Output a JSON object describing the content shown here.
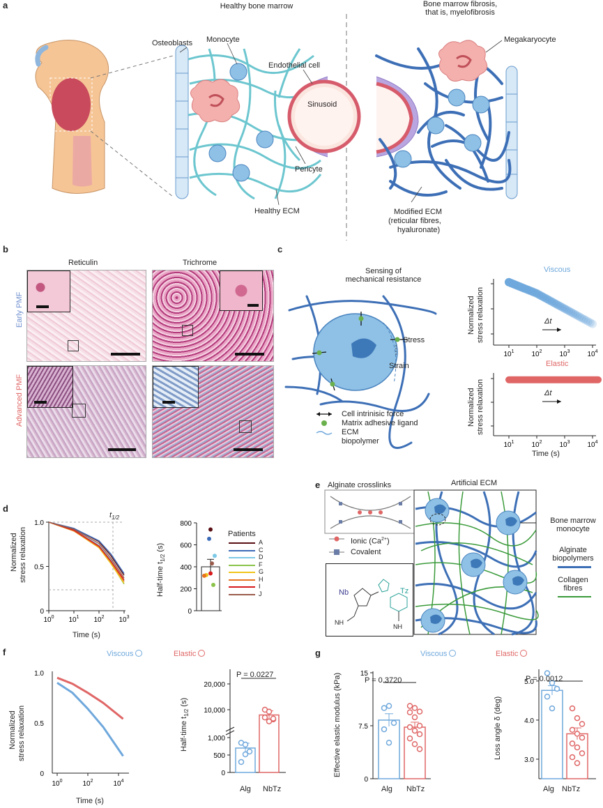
{
  "colors": {
    "viscous": "#6fa8dc",
    "elastic": "#e06666",
    "ecm_healthy": "#6cc6cf",
    "ecm_fibrotic": "#3d6fb6",
    "cell_blue": "#8fc1e6",
    "megakaryocyte": "#f2a9a9",
    "collagen": "#3a9a3a"
  },
  "panel_a": {
    "label": "a",
    "title_left": "Healthy bone marrow",
    "title_right_1": "Bone marrow fibrosis,",
    "title_right_2": "that is, myelofibrosis",
    "osteoblasts": "Osteoblasts",
    "monocyte": "Monocyte",
    "endothelial": "Endothelial cell",
    "sinusoid": "Sinusoid",
    "pericyte": "Pericyte",
    "healthy_ecm": "Healthy ECM",
    "megakaryocyte": "Megakaryocyte",
    "modified_1": "Modified ECM",
    "modified_2": "(reticular fibres,",
    "modified_3": "hyaluronate)"
  },
  "panel_b": {
    "label": "b",
    "col1": "Reticulin",
    "col2": "Trichrome",
    "row1": "Early PMF",
    "row2": "Advanced PMF"
  },
  "panel_c": {
    "label": "c",
    "sensing_1": "Sensing of",
    "sensing_2": "mechanical resistance",
    "stress": "Stress",
    "strain": "Strain",
    "legend_force": "Cell intrinisic force",
    "legend_ligand": "Matrix adhesive ligand",
    "legend_ecm_1": "ECM",
    "legend_ecm_2": "biopolymer",
    "viscous": "Viscous",
    "elastic": "Elastic",
    "ylabel_1": "Normalized",
    "ylabel_2": "stress relaxation",
    "delta_t": "Δt",
    "xlabel": "Time (s)",
    "xticks": [
      "10",
      "10",
      "10",
      "10"
    ],
    "xtick_exp": [
      "1",
      "2",
      "3",
      "4"
    ]
  },
  "panel_d": {
    "label": "d",
    "t_half": "t",
    "t_half_sub": "1/2",
    "ylabel_1": "Normalized",
    "ylabel_2": "stress relaxation",
    "xlabel": "Time (s)",
    "yticks": [
      "1.0",
      "0.5",
      "0"
    ],
    "xticks": [
      "10",
      "10",
      "10",
      "10"
    ],
    "xtick_exp": [
      "0",
      "1",
      "2",
      "3"
    ],
    "bar_ylabel": "Half-time t",
    "bar_ylabel_sub": "1/2",
    "bar_ylabel_unit": " (s)",
    "bar_yticks": [
      "800",
      "600",
      "400",
      "200",
      "0"
    ],
    "legend_title": "Patients",
    "patients": [
      {
        "id": "A",
        "color": "#5a0f14"
      },
      {
        "id": "C",
        "color": "#3b6ab7"
      },
      {
        "id": "D",
        "color": "#7cc8e6"
      },
      {
        "id": "F",
        "color": "#8bc34a"
      },
      {
        "id": "G",
        "color": "#f0c419"
      },
      {
        "id": "H",
        "color": "#e8731f"
      },
      {
        "id": "I",
        "color": "#d7191c"
      },
      {
        "id": "J",
        "color": "#9a5b4b"
      }
    ]
  },
  "panel_e": {
    "label": "e",
    "crosslinks": "Alginate crosslinks",
    "artificial": "Artificial ECM",
    "ionic": "Ionic (Ca",
    "ionic_sup": "2+",
    "ionic_end": ")",
    "covalent": "Covalent",
    "nb": "Nb",
    "tz": "Tz",
    "nh_1": "NH",
    "nh_2": "NH",
    "bm_1": "Bone marrow",
    "bm_2": "monocyte",
    "alg_1": "Alginate",
    "alg_2": "biopolymers",
    "col_1": "Collagen",
    "col_2": "fibres"
  },
  "panel_f": {
    "label": "f",
    "viscous": "Viscous",
    "elastic": "Elastic",
    "ylabel_1": "Normalized",
    "ylabel_2": "stress relaxation",
    "xlabel": "Time (s)",
    "yticks": [
      "1.0",
      "0.5",
      "0"
    ],
    "xticks": [
      "10",
      "10",
      "10"
    ],
    "xtick_exp": [
      "0",
      "2",
      "4"
    ],
    "p_value": "P = 0.0227",
    "bar_ylabel": "Half-time t",
    "bar_ylabel_sub": "1/2",
    "bar_ylabel_unit": " (s)",
    "bar_yticks_top": [
      "20,000",
      "10,000"
    ],
    "bar_yticks_bottom": [
      "1,000",
      "500",
      "0"
    ],
    "cat_1": "Alg",
    "cat_2": "NbTz"
  },
  "panel_g": {
    "label": "g",
    "viscous": "Viscous",
    "elastic": "Elastic",
    "p_left": "P = 0.3720",
    "p_right": "P = 0.0012",
    "ylabel_left": "Effective elastic modulus (kPa)",
    "ylabel_right": "Loss angle δ (deg)",
    "yticks_left": [
      "15",
      "7.5",
      "0"
    ],
    "yticks_right": [
      "5.0",
      "4.0",
      "3.0"
    ],
    "cat_1": "Alg",
    "cat_2": "NbTz"
  },
  "chart_data": [
    {
      "type": "line",
      "panel": "c-viscous",
      "series": [
        {
          "name": "Viscous",
          "x": [
            10,
            100,
            1000,
            10000
          ],
          "y": [
            0.95,
            0.78,
            0.55,
            0.32
          ]
        }
      ],
      "xlabel": "",
      "ylabel": "Normalized stress relaxation"
    },
    {
      "type": "line",
      "panel": "c-elastic",
      "series": [
        {
          "name": "Elastic",
          "x": [
            10,
            100,
            1000,
            10000
          ],
          "y": [
            0.95,
            0.95,
            0.95,
            0.95
          ]
        }
      ],
      "xlabel": "Time (s)",
      "ylabel": "Normalized stress relaxation"
    },
    {
      "type": "line",
      "panel": "d-left",
      "x": [
        1,
        10,
        100,
        300,
        1000
      ],
      "series": [
        {
          "name": "A",
          "values": [
            1.0,
            0.93,
            0.78,
            0.62,
            0.4
          ]
        },
        {
          "name": "C",
          "values": [
            1.0,
            0.93,
            0.79,
            0.64,
            0.42
          ]
        },
        {
          "name": "D",
          "values": [
            1.0,
            0.91,
            0.74,
            0.57,
            0.34
          ]
        },
        {
          "name": "F",
          "values": [
            1.0,
            0.9,
            0.72,
            0.54,
            0.3
          ]
        },
        {
          "name": "G",
          "values": [
            1.0,
            0.9,
            0.71,
            0.53,
            0.31
          ]
        },
        {
          "name": "H",
          "values": [
            1.0,
            0.9,
            0.72,
            0.55,
            0.33
          ]
        },
        {
          "name": "I",
          "values": [
            1.0,
            0.91,
            0.73,
            0.56,
            0.35
          ]
        },
        {
          "name": "J",
          "values": [
            1.0,
            0.92,
            0.76,
            0.59,
            0.37
          ]
        }
      ],
      "ylim": [
        0,
        1.0
      ]
    },
    {
      "type": "bar",
      "panel": "d-right",
      "categories": [
        ""
      ],
      "values": [
        400
      ],
      "error": 68,
      "points": [
        {
          "patient": "A",
          "value": 740
        },
        {
          "patient": "C",
          "value": 655
        },
        {
          "patient": "D",
          "value": 500
        },
        {
          "patient": "F",
          "value": 235
        },
        {
          "patient": "G",
          "value": 325
        },
        {
          "patient": "H",
          "value": 318
        },
        {
          "patient": "I",
          "value": 340
        },
        {
          "patient": "J",
          "value": 430
        }
      ],
      "ylim": [
        0,
        800
      ]
    },
    {
      "type": "line",
      "panel": "f-left",
      "series": [
        {
          "name": "Viscous",
          "x": [
            1,
            10,
            100,
            1000,
            20000
          ],
          "y": [
            0.9,
            0.8,
            0.64,
            0.46,
            0.17
          ]
        },
        {
          "name": "Elastic",
          "x": [
            1,
            10,
            100,
            1000,
            20000
          ],
          "y": [
            0.95,
            0.89,
            0.8,
            0.7,
            0.54
          ]
        }
      ],
      "ylim": [
        0,
        1.0
      ]
    },
    {
      "type": "bar",
      "panel": "f-right",
      "categories": [
        "Alg",
        "NbTz"
      ],
      "values": [
        700,
        8100
      ],
      "errors": [
        140,
        1500
      ],
      "points": [
        [
          850,
          800,
          600,
          300,
          520
        ],
        [
          10000,
          9300,
          6500,
          7200,
          5800,
          6800
        ]
      ]
    },
    {
      "type": "bar",
      "panel": "g-left",
      "categories": [
        "Alg",
        "NbTz"
      ],
      "values": [
        8.3,
        7.3
      ],
      "errors": [
        0.9,
        0.7
      ],
      "ylim": [
        0,
        15
      ],
      "points": [
        [
          10,
          10.3,
          7.9,
          7.0,
          5.1
        ],
        [
          10.3,
          10,
          9.5,
          9.4,
          8.7,
          7.5,
          7.3,
          6.8,
          6.3,
          5.7,
          4.9,
          4.2
        ]
      ]
    },
    {
      "type": "bar",
      "panel": "g-right",
      "categories": [
        "Alg",
        "NbTz"
      ],
      "values": [
        4.76,
        3.65
      ],
      "errors": [
        0.12,
        0.15
      ],
      "ylim": [
        2.5,
        5.3
      ],
      "points": [
        [
          5.2,
          4.95,
          4.8,
          4.6,
          4.3
        ],
        [
          4.3,
          4.05,
          3.9,
          3.75,
          3.65,
          3.55,
          3.4,
          3.3,
          3.15,
          3.05,
          2.9
        ]
      ]
    }
  ]
}
